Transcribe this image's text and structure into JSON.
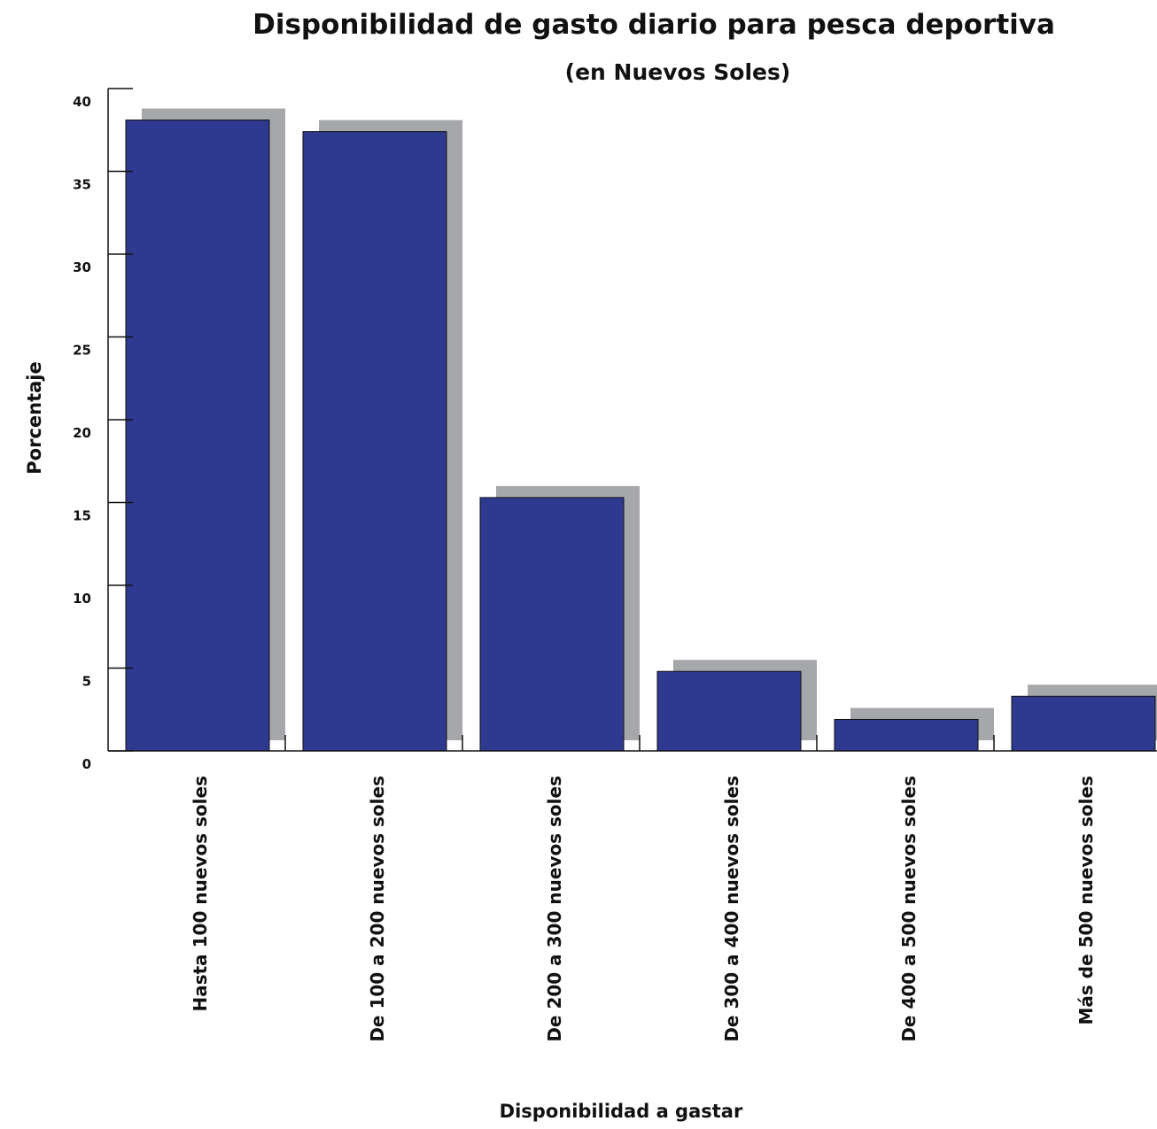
{
  "chart_data": {
    "type": "bar",
    "title": "Disponibilidad de gasto diario para pesca deportiva",
    "subtitle": "(en Nuevos Soles)",
    "xlabel": "Disponibilidad a gastar",
    "ylabel": "Porcentaje",
    "categories": [
      "Hasta 100 nuevos soles",
      "De 100 a 200 nuevos soles",
      "De 200 a 300 nuevos soles",
      "De 300 a 400 nuevos soles",
      "De 400 a 500 nuevos soles",
      "Más de 500 nuevos soles"
    ],
    "values": [
      38.1,
      37.4,
      15.3,
      4.8,
      1.9,
      3.3
    ],
    "ylim": [
      0,
      40
    ],
    "yticks": [
      0,
      5,
      10,
      15,
      20,
      25,
      30,
      35,
      40
    ],
    "ytick_labels": [
      "0",
      "5",
      "10",
      "15",
      "20",
      "25",
      "30",
      "35",
      "40"
    ],
    "grid": false,
    "legend": "none",
    "colors": {
      "bar": "#2e3a8f",
      "shadow": "#a6a7ab",
      "axis": "#111111"
    }
  }
}
